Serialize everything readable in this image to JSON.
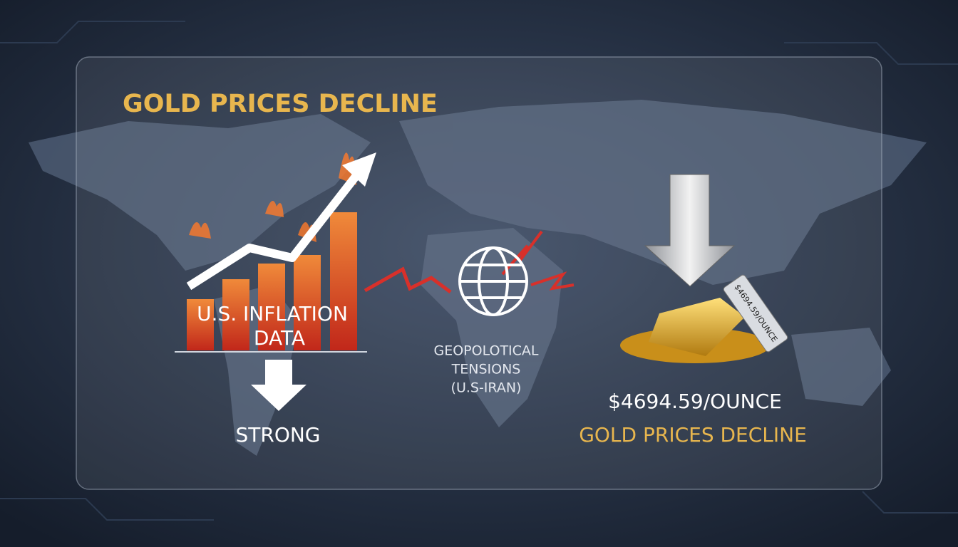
{
  "header": {
    "title": "GOLD PRICES DECLINE"
  },
  "left": {
    "label_lines": [
      "U.S. INFLATION",
      "DATA"
    ],
    "caption": "STRONG"
  },
  "center": {
    "lines": [
      "GEOPOLOTICAL",
      "TENSIONS",
      "(U.S-IRAN)"
    ]
  },
  "right": {
    "tag": "$4694.59/OUNCE",
    "price": "$4694.59/OUNCE",
    "caption": "GOLD PRICES DECLINE"
  }
}
